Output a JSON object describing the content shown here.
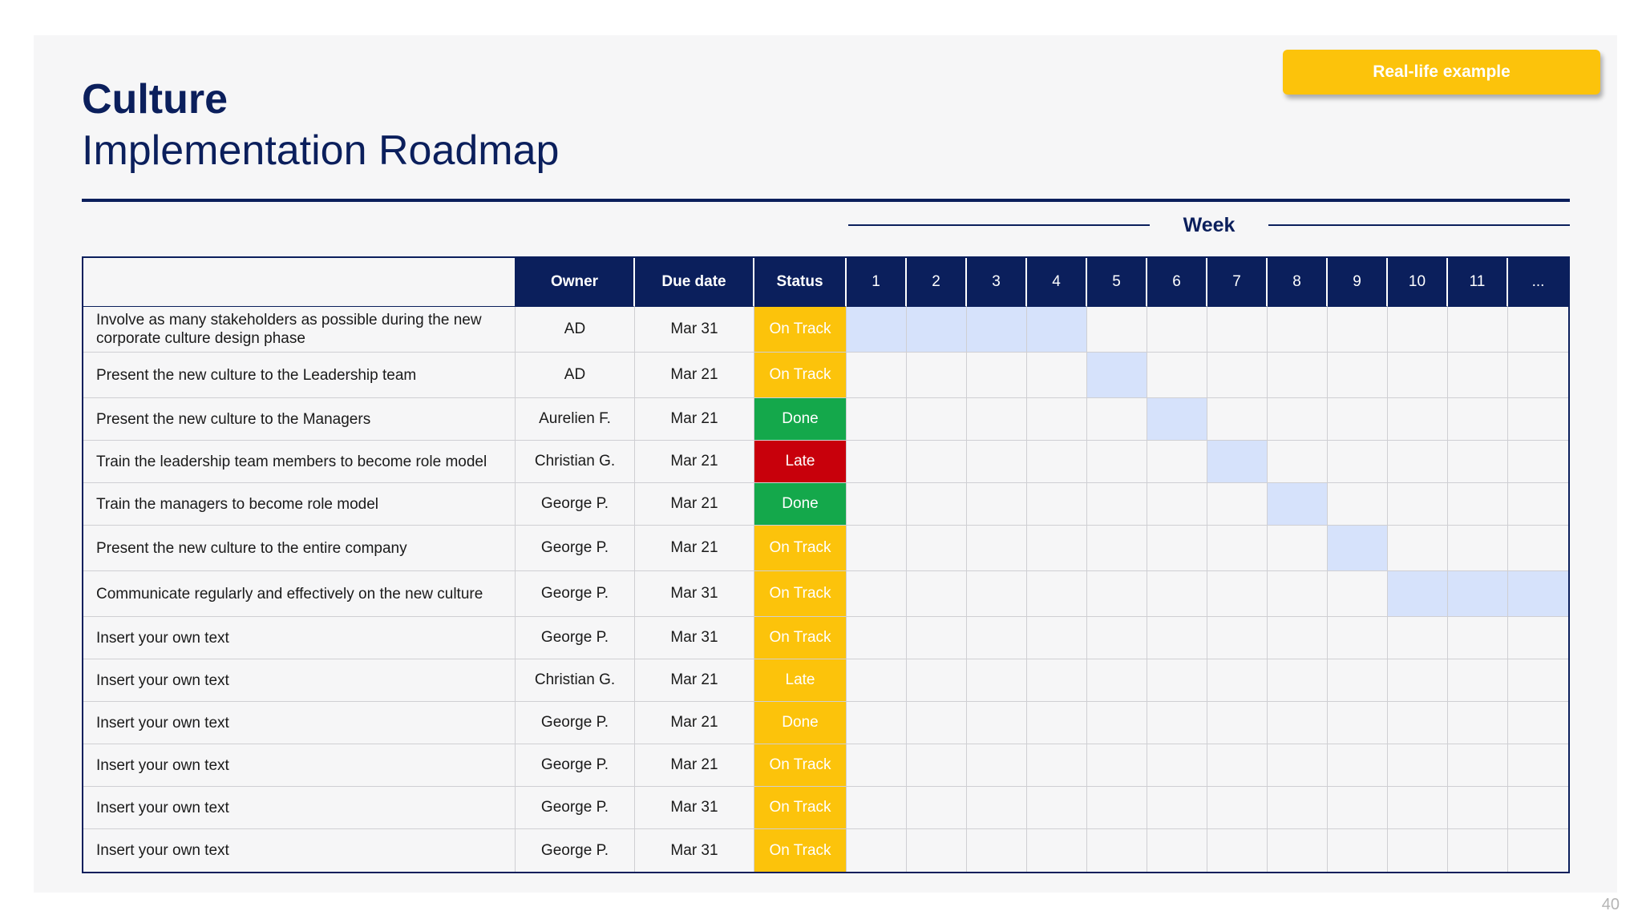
{
  "title": "Culture",
  "subtitle": "Implementation Roadmap",
  "example_button": "Real-life example",
  "week_label": "Week",
  "page_number": "40",
  "colors": {
    "navy": "#0b1f5c",
    "yellow": "#fcc30b",
    "green": "#14a84b",
    "red": "#c8000b",
    "week_fill": "#d6e2fb"
  },
  "columns": {
    "owner": "Owner",
    "due_date": "Due date",
    "status": "Status",
    "weeks": [
      "1",
      "2",
      "3",
      "4",
      "5",
      "6",
      "7",
      "8",
      "9",
      "10",
      "11",
      "..."
    ]
  },
  "rows": [
    {
      "task": "Involve as many stakeholders as possible during the new corporate culture design phase",
      "owner": "AD",
      "due": "Mar 31",
      "status": "On Track",
      "status_color": "yellow",
      "active_weeks": [
        1,
        2,
        3,
        4
      ]
    },
    {
      "task": "Present the new culture to the Leadership team",
      "owner": "AD",
      "due": "Mar 21",
      "status": "On Track",
      "status_color": "yellow",
      "active_weeks": [
        5
      ]
    },
    {
      "task": "Present the new culture to the Managers",
      "owner": "Aurelien F.",
      "due": "Mar 21",
      "status": "Done",
      "status_color": "green",
      "active_weeks": [
        6
      ]
    },
    {
      "task": "Train the leadership team members to become role model",
      "owner": "Christian G.",
      "due": "Mar 21",
      "status": "Late",
      "status_color": "red",
      "active_weeks": [
        7
      ]
    },
    {
      "task": "Train the managers to become role model",
      "owner": "George P.",
      "due": "Mar 21",
      "status": "Done",
      "status_color": "green",
      "active_weeks": [
        8
      ]
    },
    {
      "task": "Present the new culture to the entire company",
      "owner": "George P.",
      "due": "Mar 21",
      "status": "On Track",
      "status_color": "yellow",
      "active_weeks": [
        9
      ]
    },
    {
      "task": "Communicate regularly and effectively on the new culture",
      "owner": "George P.",
      "due": "Mar 31",
      "status": "On Track",
      "status_color": "yellow",
      "active_weeks": [
        10,
        11,
        12
      ]
    },
    {
      "task": "Insert your own text",
      "owner": "George P.",
      "due": "Mar 31",
      "status": "On Track",
      "status_color": "yellow",
      "active_weeks": []
    },
    {
      "task": "Insert your own text",
      "owner": "Christian G.",
      "due": "Mar 21",
      "status": "Late",
      "status_color": "yellow",
      "active_weeks": []
    },
    {
      "task": "Insert your own text",
      "owner": "George P.",
      "due": "Mar 21",
      "status": "Done",
      "status_color": "yellow",
      "active_weeks": []
    },
    {
      "task": "Insert your own text",
      "owner": "George P.",
      "due": "Mar 21",
      "status": "On Track",
      "status_color": "yellow",
      "active_weeks": []
    },
    {
      "task": "Insert your own text",
      "owner": "George P.",
      "due": "Mar 31",
      "status": "On Track",
      "status_color": "yellow",
      "active_weeks": []
    },
    {
      "task": "Insert your own text",
      "owner": "George P.",
      "due": "Mar 31",
      "status": "On Track",
      "status_color": "yellow",
      "active_weeks": []
    }
  ]
}
